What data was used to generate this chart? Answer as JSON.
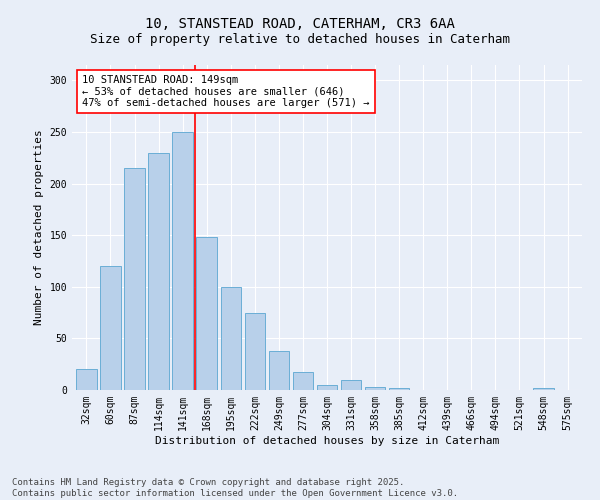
{
  "title_line1": "10, STANSTEAD ROAD, CATERHAM, CR3 6AA",
  "title_line2": "Size of property relative to detached houses in Caterham",
  "xlabel": "Distribution of detached houses by size in Caterham",
  "ylabel": "Number of detached properties",
  "categories": [
    "32sqm",
    "60sqm",
    "87sqm",
    "114sqm",
    "141sqm",
    "168sqm",
    "195sqm",
    "222sqm",
    "249sqm",
    "277sqm",
    "304sqm",
    "331sqm",
    "358sqm",
    "385sqm",
    "412sqm",
    "439sqm",
    "466sqm",
    "494sqm",
    "521sqm",
    "548sqm",
    "575sqm"
  ],
  "values": [
    20,
    120,
    215,
    230,
    250,
    148,
    100,
    75,
    38,
    17,
    5,
    10,
    3,
    2,
    0,
    0,
    0,
    0,
    0,
    2,
    0
  ],
  "bar_color": "#b8d0ea",
  "bar_edge_color": "#6aaed6",
  "bar_width": 0.85,
  "property_line_x": 4.5,
  "property_line_color": "red",
  "annotation_text": "10 STANSTEAD ROAD: 149sqm\n← 53% of detached houses are smaller (646)\n47% of semi-detached houses are larger (571) →",
  "annotation_box_color": "white",
  "annotation_box_edge_color": "red",
  "ylim": [
    0,
    315
  ],
  "yticks": [
    0,
    50,
    100,
    150,
    200,
    250,
    300
  ],
  "background_color": "#e8eef8",
  "footer_line1": "Contains HM Land Registry data © Crown copyright and database right 2025.",
  "footer_line2": "Contains public sector information licensed under the Open Government Licence v3.0.",
  "grid_color": "white",
  "title_fontsize": 10,
  "subtitle_fontsize": 9,
  "axis_label_fontsize": 8,
  "tick_fontsize": 7,
  "annotation_fontsize": 7.5,
  "footer_fontsize": 6.5
}
